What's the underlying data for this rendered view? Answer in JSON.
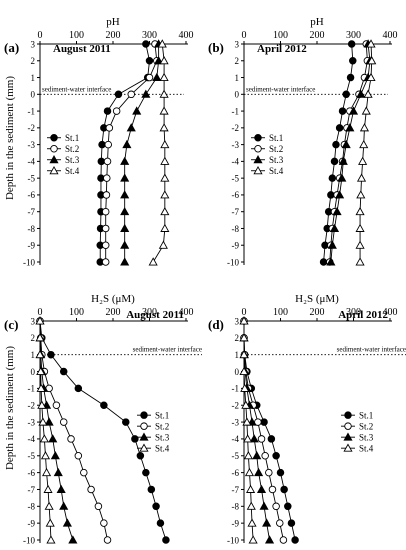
{
  "figure": {
    "y_axis_label": "Depth in the sediment (mm)"
  },
  "chart_data": [
    {
      "type": "line",
      "panel_label": "(a)",
      "title": "August 2011",
      "xlabel": "pH",
      "xlim": [
        0,
        400
      ],
      "xticks": [
        "0",
        "100",
        "200",
        "300",
        "400"
      ],
      "ylim": [
        -10,
        3
      ],
      "yticks": [
        "3",
        "2",
        "1",
        "0",
        "-1",
        "-2",
        "-3",
        "-4",
        "-5",
        "-6",
        "-7",
        "-8",
        "-9",
        "-10"
      ],
      "reference_line": {
        "y": 0,
        "label": "sediment-water interface"
      },
      "legend_position": "left",
      "series": [
        {
          "name": "St.1",
          "marker": "filled-circle",
          "points": [
            [
              290,
              3
            ],
            [
              300,
              2
            ],
            [
              295,
              1
            ],
            [
              215,
              0
            ],
            [
              185,
              -1
            ],
            [
              175,
              -2
            ],
            [
              170,
              -3
            ],
            [
              168,
              -4
            ],
            [
              167,
              -5
            ],
            [
              167,
              -6
            ],
            [
              167,
              -7
            ],
            [
              166,
              -8
            ],
            [
              165,
              -9
            ],
            [
              165,
              -10
            ]
          ]
        },
        {
          "name": "St.2",
          "marker": "open-circle",
          "points": [
            [
              315,
              3
            ],
            [
              320,
              2
            ],
            [
              300,
              1
            ],
            [
              250,
              0
            ],
            [
              210,
              -1
            ],
            [
              190,
              -2
            ],
            [
              187,
              -3
            ],
            [
              185,
              -4
            ],
            [
              183,
              -5
            ],
            [
              182,
              -6
            ],
            [
              180,
              -7
            ],
            [
              180,
              -8
            ],
            [
              180,
              -9
            ],
            [
              180,
              -10
            ]
          ]
        },
        {
          "name": "St.3",
          "marker": "filled-triangle",
          "points": [
            [
              325,
              3
            ],
            [
              325,
              2
            ],
            [
              320,
              1
            ],
            [
              290,
              0
            ],
            [
              265,
              -1
            ],
            [
              250,
              -2
            ],
            [
              238,
              -3
            ],
            [
              232,
              -4
            ],
            [
              232,
              -5
            ],
            [
              232,
              -6
            ],
            [
              232,
              -7
            ],
            [
              232,
              -8
            ],
            [
              232,
              -9
            ],
            [
              232,
              -10
            ]
          ]
        },
        {
          "name": "St.4",
          "marker": "open-triangle",
          "points": [
            [
              335,
              3
            ],
            [
              340,
              2
            ],
            [
              340,
              1
            ],
            [
              340,
              0
            ],
            [
              340,
              -1
            ],
            [
              340,
              -2
            ],
            [
              342,
              -3
            ],
            [
              342,
              -4
            ],
            [
              342,
              -5
            ],
            [
              342,
              -6
            ],
            [
              342,
              -7
            ],
            [
              342,
              -8
            ],
            [
              338,
              -9
            ],
            [
              310,
              -10
            ]
          ]
        }
      ]
    },
    {
      "type": "line",
      "panel_label": "(b)",
      "title": "April 2012",
      "xlabel": "pH",
      "xlim": [
        0,
        400
      ],
      "xticks": [
        "0",
        "100",
        "200",
        "300",
        "400"
      ],
      "ylim": [
        -10,
        3
      ],
      "yticks": [
        "3",
        "2",
        "1",
        "0",
        "-1",
        "-2",
        "-3",
        "-4",
        "-5",
        "-6",
        "-7",
        "-8",
        "-9",
        "-10"
      ],
      "reference_line": {
        "y": 0,
        "label": "sediment-water interface"
      },
      "legend_position": "left",
      "series": [
        {
          "name": "St.1",
          "marker": "filled-circle",
          "points": [
            [
              295,
              3
            ],
            [
              298,
              2
            ],
            [
              292,
              1
            ],
            [
              280,
              0
            ],
            [
              270,
              -1
            ],
            [
              262,
              -2
            ],
            [
              252,
              -3
            ],
            [
              248,
              -4
            ],
            [
              242,
              -5
            ],
            [
              238,
              -6
            ],
            [
              232,
              -7
            ],
            [
              228,
              -8
            ],
            [
              222,
              -9
            ],
            [
              218,
              -10
            ]
          ]
        },
        {
          "name": "St.2",
          "marker": "open-circle",
          "points": [
            [
              335,
              3
            ],
            [
              338,
              2
            ],
            [
              330,
              1
            ],
            [
              315,
              0
            ],
            [
              290,
              -1
            ],
            [
              282,
              -2
            ],
            [
              275,
              -3
            ],
            [
              270,
              -4
            ],
            [
              262,
              -5
            ],
            [
              255,
              -6
            ],
            [
              248,
              -7
            ],
            [
              242,
              -8
            ],
            [
              238,
              -9
            ],
            [
              235,
              -10
            ]
          ]
        },
        {
          "name": "St.3",
          "marker": "filled-triangle",
          "points": [
            [
              340,
              3
            ],
            [
              345,
              2
            ],
            [
              340,
              1
            ],
            [
              320,
              0
            ],
            [
              300,
              -1
            ],
            [
              290,
              -2
            ],
            [
              280,
              -3
            ],
            [
              272,
              -4
            ],
            [
              268,
              -5
            ],
            [
              262,
              -6
            ],
            [
              255,
              -7
            ],
            [
              248,
              -8
            ],
            [
              242,
              -9
            ],
            [
              238,
              -10
            ]
          ]
        },
        {
          "name": "St.4",
          "marker": "open-triangle",
          "points": [
            [
              348,
              3
            ],
            [
              350,
              2
            ],
            [
              348,
              1
            ],
            [
              340,
              0
            ],
            [
              335,
              -1
            ],
            [
              330,
              -2
            ],
            [
              328,
              -3
            ],
            [
              325,
              -4
            ],
            [
              322,
              -5
            ],
            [
              320,
              -6
            ],
            [
              318,
              -7
            ],
            [
              318,
              -8
            ],
            [
              318,
              -9
            ],
            [
              318,
              -10
            ]
          ]
        }
      ]
    },
    {
      "type": "line",
      "panel_label": "(c)",
      "title": "August 2011",
      "xlabel": "H₂S (μM)",
      "xlim": [
        0,
        400
      ],
      "xticks": [
        "0",
        "100",
        "200",
        "300",
        "400"
      ],
      "ylim": [
        -10,
        3
      ],
      "yticks": [
        "3",
        "2",
        "1",
        "0",
        "-1",
        "-2",
        "-3",
        "-4",
        "-5",
        "-6",
        "-7",
        "-8",
        "-9",
        "-10"
      ],
      "reference_line": {
        "y": 1,
        "label": "sediment-water interface"
      },
      "legend_position": "right",
      "series": [
        {
          "name": "St.1",
          "marker": "filled-circle",
          "points": [
            [
              0,
              3
            ],
            [
              5,
              2
            ],
            [
              30,
              1
            ],
            [
              65,
              0
            ],
            [
              105,
              -1
            ],
            [
              175,
              -2
            ],
            [
              235,
              -3
            ],
            [
              260,
              -4
            ],
            [
              275,
              -5
            ],
            [
              290,
              -6
            ],
            [
              305,
              -7
            ],
            [
              318,
              -8
            ],
            [
              330,
              -9
            ],
            [
              345,
              -10
            ]
          ]
        },
        {
          "name": "St.2",
          "marker": "open-circle",
          "points": [
            [
              0,
              3
            ],
            [
              2,
              2
            ],
            [
              5,
              1
            ],
            [
              12,
              0
            ],
            [
              25,
              -1
            ],
            [
              45,
              -2
            ],
            [
              65,
              -3
            ],
            [
              85,
              -4
            ],
            [
              105,
              -5
            ],
            [
              120,
              -6
            ],
            [
              140,
              -7
            ],
            [
              160,
              -8
            ],
            [
              175,
              -9
            ],
            [
              185,
              -10
            ]
          ]
        },
        {
          "name": "St.3",
          "marker": "filled-triangle",
          "points": [
            [
              0,
              3
            ],
            [
              1,
              2
            ],
            [
              2,
              1
            ],
            [
              5,
              0
            ],
            [
              10,
              -1
            ],
            [
              18,
              -2
            ],
            [
              25,
              -3
            ],
            [
              35,
              -4
            ],
            [
              42,
              -5
            ],
            [
              50,
              -6
            ],
            [
              58,
              -7
            ],
            [
              65,
              -8
            ],
            [
              75,
              -9
            ],
            [
              90,
              -10
            ]
          ]
        },
        {
          "name": "St.4",
          "marker": "open-triangle",
          "points": [
            [
              0,
              3
            ],
            [
              0,
              2
            ],
            [
              0,
              1
            ],
            [
              2,
              0
            ],
            [
              3,
              -1
            ],
            [
              5,
              -2
            ],
            [
              8,
              -3
            ],
            [
              12,
              -4
            ],
            [
              15,
              -5
            ],
            [
              18,
              -6
            ],
            [
              22,
              -7
            ],
            [
              25,
              -8
            ],
            [
              28,
              -9
            ],
            [
              30,
              -10
            ]
          ]
        }
      ]
    },
    {
      "type": "line",
      "panel_label": "(d)",
      "title": "April 2012",
      "xlabel": "H₂S (μM)",
      "xlim": [
        0,
        400
      ],
      "xticks": [
        "0",
        "100",
        "200",
        "300",
        "400"
      ],
      "ylim": [
        -10,
        3
      ],
      "yticks": [
        "3",
        "2",
        "1",
        "0",
        "-1",
        "-2",
        "-3",
        "-4",
        "-5",
        "-6",
        "-7",
        "-8",
        "-9",
        "-10"
      ],
      "reference_line": {
        "y": 1,
        "label": "sediment-water interface"
      },
      "legend_position": "right",
      "series": [
        {
          "name": "St.1",
          "marker": "filled-circle",
          "points": [
            [
              0,
              3
            ],
            [
              0,
              2
            ],
            [
              2,
              1
            ],
            [
              8,
              0
            ],
            [
              20,
              -1
            ],
            [
              35,
              -2
            ],
            [
              55,
              -3
            ],
            [
              75,
              -4
            ],
            [
              88,
              -5
            ],
            [
              100,
              -6
            ],
            [
              110,
              -7
            ],
            [
              120,
              -8
            ],
            [
              130,
              -9
            ],
            [
              140,
              -10
            ]
          ]
        },
        {
          "name": "St.2",
          "marker": "open-circle",
          "points": [
            [
              0,
              3
            ],
            [
              0,
              2
            ],
            [
              1,
              1
            ],
            [
              5,
              0
            ],
            [
              12,
              -1
            ],
            [
              25,
              -2
            ],
            [
              38,
              -3
            ],
            [
              48,
              -4
            ],
            [
              58,
              -5
            ],
            [
              68,
              -6
            ],
            [
              78,
              -7
            ],
            [
              88,
              -8
            ],
            [
              98,
              -9
            ],
            [
              108,
              -10
            ]
          ]
        },
        {
          "name": "St.3",
          "marker": "filled-triangle",
          "points": [
            [
              0,
              3
            ],
            [
              0,
              2
            ],
            [
              1,
              1
            ],
            [
              3,
              0
            ],
            [
              8,
              -1
            ],
            [
              15,
              -2
            ],
            [
              22,
              -3
            ],
            [
              28,
              -4
            ],
            [
              35,
              -5
            ],
            [
              40,
              -6
            ],
            [
              48,
              -7
            ],
            [
              55,
              -8
            ],
            [
              62,
              -9
            ],
            [
              70,
              -10
            ]
          ]
        },
        {
          "name": "St.4",
          "marker": "open-triangle",
          "points": [
            [
              0,
              3
            ],
            [
              0,
              2
            ],
            [
              0,
              1
            ],
            [
              0,
              0
            ],
            [
              2,
              -1
            ],
            [
              5,
              -2
            ],
            [
              8,
              -3
            ],
            [
              10,
              -4
            ],
            [
              12,
              -5
            ],
            [
              15,
              -6
            ],
            [
              18,
              -7
            ],
            [
              20,
              -8
            ],
            [
              22,
              -9
            ],
            [
              25,
              -10
            ]
          ]
        }
      ]
    }
  ]
}
